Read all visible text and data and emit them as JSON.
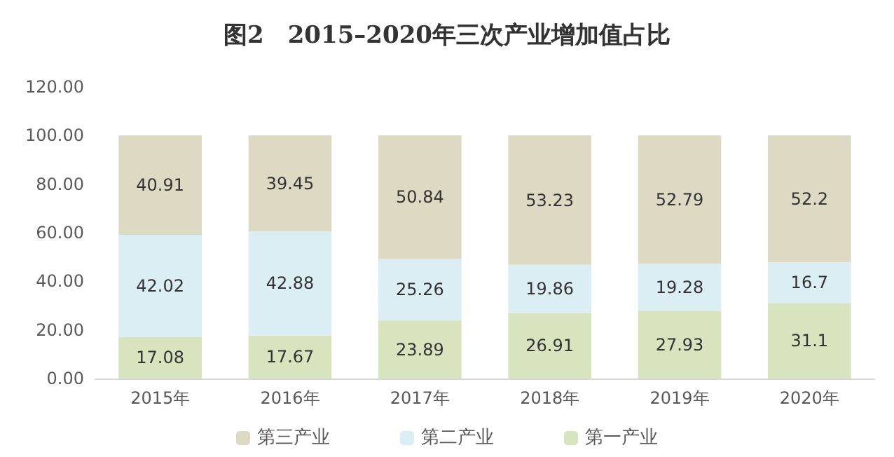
{
  "chart_data": {
    "type": "bar",
    "stacked": true,
    "title": "图2　2015–2020年三次产业增加值占比",
    "categories": [
      "2015年",
      "2016年",
      "2017年",
      "2018年",
      "2019年",
      "2020年"
    ],
    "series": [
      {
        "name": "第一产业",
        "color": "#d7e4bd",
        "values": [
          17.08,
          17.67,
          23.89,
          26.91,
          27.93,
          31.1
        ]
      },
      {
        "name": "第二产业",
        "color": "#daeef3",
        "values": [
          42.02,
          42.88,
          25.26,
          19.86,
          19.28,
          16.7
        ]
      },
      {
        "name": "第三产业",
        "color": "#ddd9c3",
        "values": [
          40.91,
          39.45,
          50.84,
          53.23,
          52.79,
          52.2
        ]
      }
    ],
    "ylim": [
      0,
      120
    ],
    "yticks": [
      {
        "value": 0,
        "label": "0.00"
      },
      {
        "value": 20,
        "label": "20.00"
      },
      {
        "value": 40,
        "label": "40.00"
      },
      {
        "value": 60,
        "label": "60.00"
      },
      {
        "value": 80,
        "label": "80.00"
      },
      {
        "value": 100,
        "label": "100.00"
      },
      {
        "value": 120,
        "label": "120.00"
      }
    ],
    "data_labels": true,
    "grid": false,
    "legend": "bottom"
  }
}
